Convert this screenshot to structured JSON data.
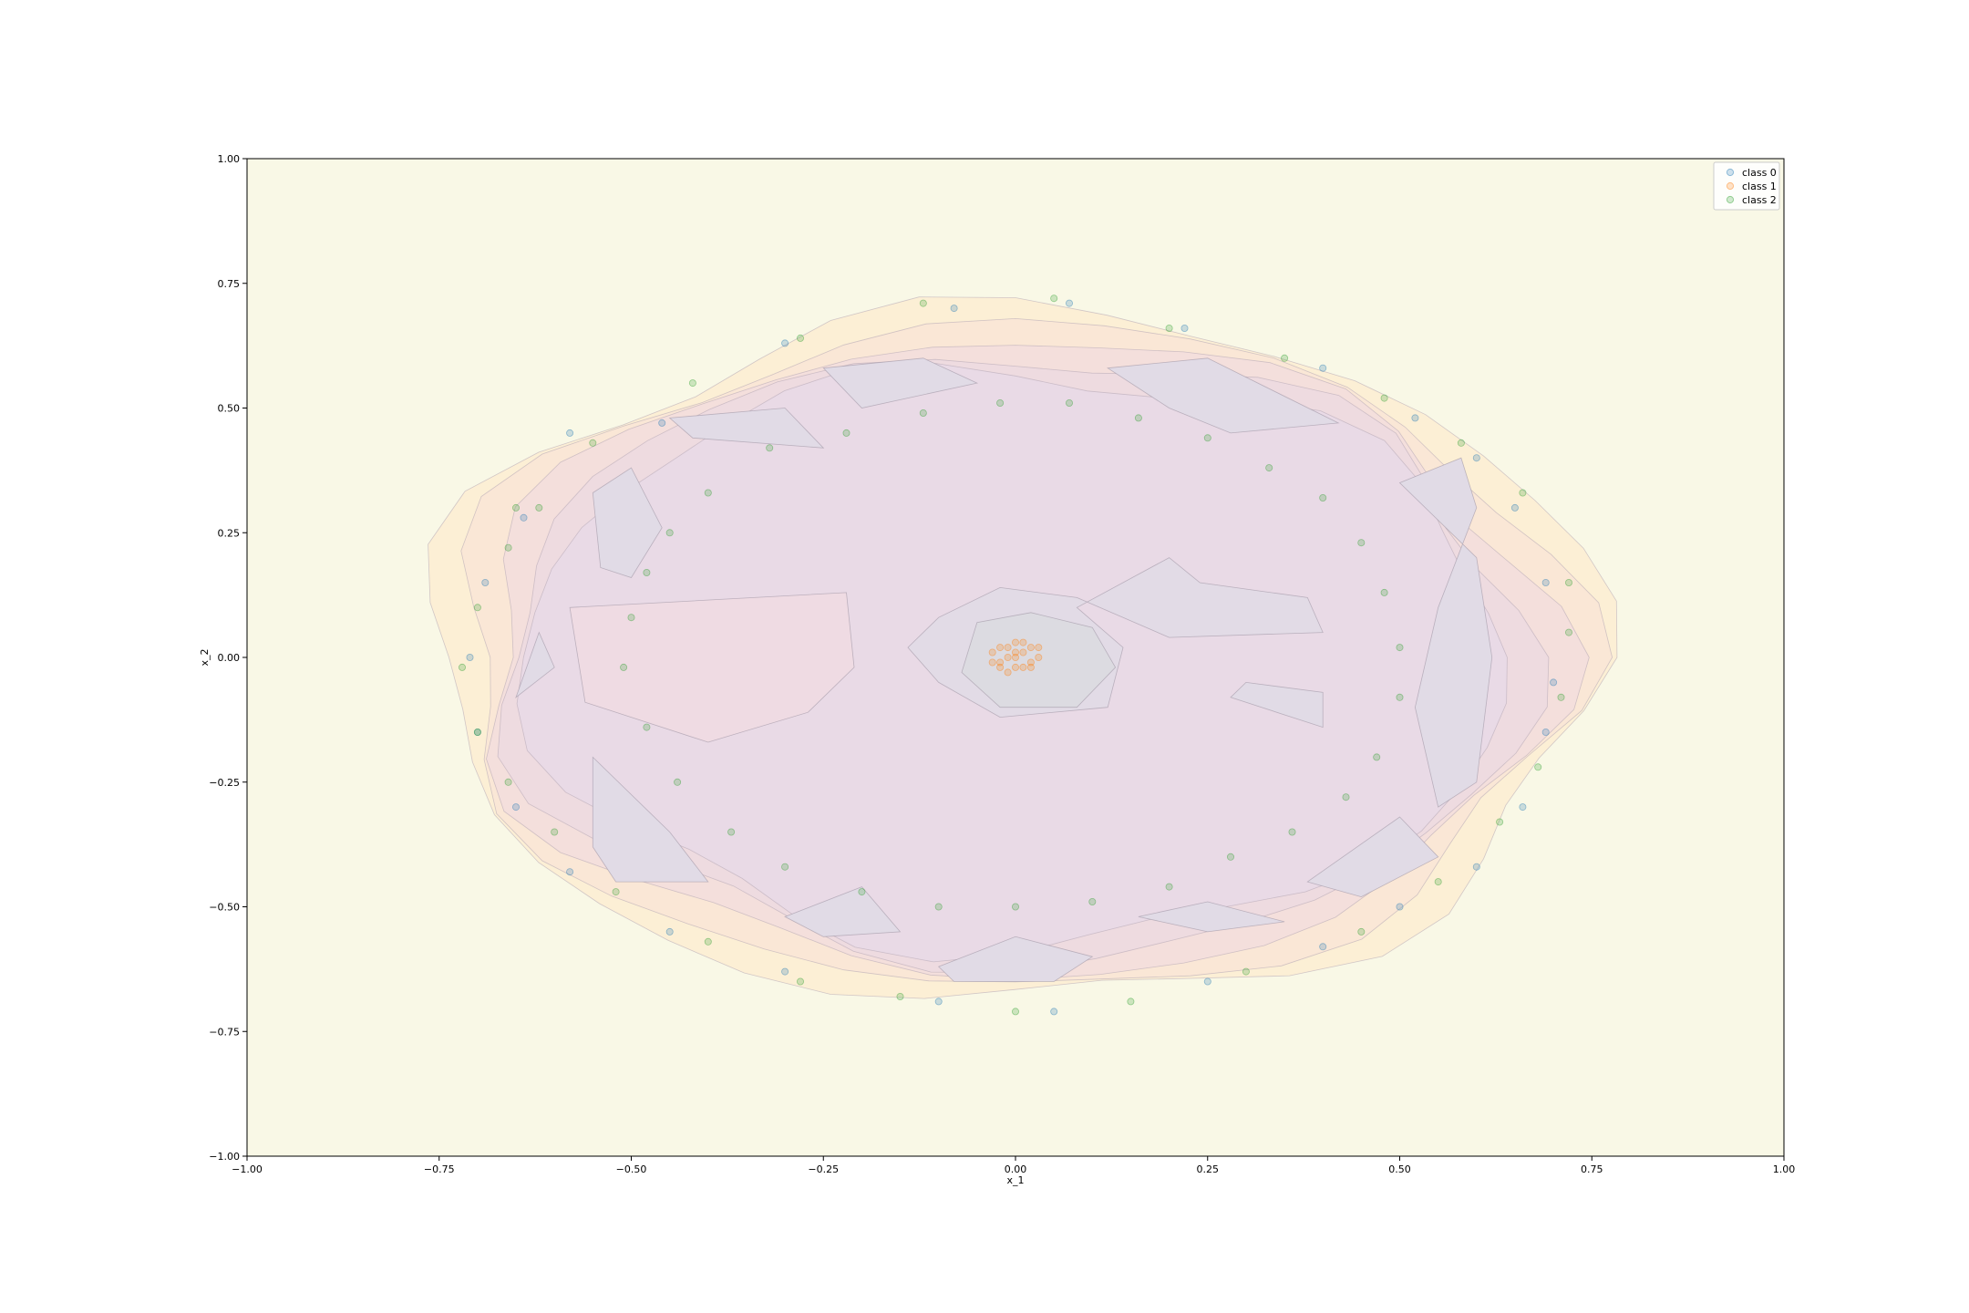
{
  "chart_data": {
    "type": "scatter",
    "title": "",
    "xlabel": "x_1",
    "ylabel": "x_2",
    "xlim": [
      -1.0,
      1.0
    ],
    "ylim": [
      -1.0,
      1.0
    ],
    "xticks": [
      "−1.00",
      "−0.75",
      "−0.50",
      "−0.25",
      "0.00",
      "0.25",
      "0.50",
      "0.75",
      "1.00"
    ],
    "yticks": [
      "−1.00",
      "−0.75",
      "−0.50",
      "−0.25",
      "0.00",
      "0.25",
      "0.50",
      "0.75",
      "1.00"
    ],
    "grid": false,
    "legend_position": "top-right",
    "background_contour": "filled decision-function contours (yellow outside → pink/purple inside) with darker regions near the center",
    "series": [
      {
        "name": "class 0",
        "color": "#1f77b4",
        "points": [
          [
            -0.58,
            0.45
          ],
          [
            -0.46,
            0.47
          ],
          [
            -0.3,
            0.63
          ],
          [
            -0.08,
            0.7
          ],
          [
            0.07,
            0.71
          ],
          [
            0.22,
            0.66
          ],
          [
            0.4,
            0.58
          ],
          [
            0.52,
            0.48
          ],
          [
            0.6,
            0.4
          ],
          [
            0.65,
            0.3
          ],
          [
            0.69,
            0.15
          ],
          [
            0.7,
            -0.05
          ],
          [
            0.69,
            -0.15
          ],
          [
            0.66,
            -0.3
          ],
          [
            0.6,
            -0.42
          ],
          [
            0.5,
            -0.5
          ],
          [
            0.4,
            -0.58
          ],
          [
            0.25,
            -0.65
          ],
          [
            0.05,
            -0.71
          ],
          [
            -0.1,
            -0.69
          ],
          [
            -0.3,
            -0.63
          ],
          [
            -0.45,
            -0.55
          ],
          [
            -0.58,
            -0.43
          ],
          [
            -0.65,
            -0.3
          ],
          [
            -0.7,
            -0.15
          ],
          [
            -0.71,
            0.0
          ],
          [
            -0.69,
            0.15
          ],
          [
            -0.64,
            0.28
          ]
        ]
      },
      {
        "name": "class 1",
        "color": "#ff7f0e",
        "points": [
          [
            0.0,
            0.0
          ],
          [
            0.01,
            0.01
          ],
          [
            -0.01,
            0.02
          ],
          [
            0.02,
            -0.01
          ],
          [
            -0.02,
            -0.01
          ],
          [
            0.0,
            -0.02
          ],
          [
            0.01,
            0.03
          ],
          [
            -0.01,
            -0.03
          ],
          [
            0.03,
            0.0
          ],
          [
            -0.03,
            0.01
          ],
          [
            0.02,
            0.02
          ],
          [
            -0.02,
            0.02
          ],
          [
            0.01,
            -0.02
          ],
          [
            -0.01,
            0.0
          ],
          [
            0.0,
            0.01
          ],
          [
            0.02,
            -0.02
          ],
          [
            -0.02,
            -0.02
          ],
          [
            0.03,
            0.02
          ],
          [
            -0.03,
            -0.01
          ],
          [
            0.0,
            0.03
          ]
        ]
      },
      {
        "name": "class 2",
        "color": "#2ca02c",
        "points": [
          [
            -0.4,
            0.33
          ],
          [
            -0.32,
            0.42
          ],
          [
            -0.22,
            0.45
          ],
          [
            -0.12,
            0.49
          ],
          [
            -0.02,
            0.51
          ],
          [
            0.07,
            0.51
          ],
          [
            0.16,
            0.48
          ],
          [
            0.25,
            0.44
          ],
          [
            0.33,
            0.38
          ],
          [
            0.4,
            0.32
          ],
          [
            0.45,
            0.23
          ],
          [
            0.48,
            0.13
          ],
          [
            0.5,
            0.02
          ],
          [
            0.5,
            -0.08
          ],
          [
            0.47,
            -0.2
          ],
          [
            0.43,
            -0.28
          ],
          [
            0.36,
            -0.35
          ],
          [
            0.28,
            -0.4
          ],
          [
            0.2,
            -0.46
          ],
          [
            0.1,
            -0.49
          ],
          [
            0.0,
            -0.5
          ],
          [
            -0.1,
            -0.5
          ],
          [
            -0.2,
            -0.47
          ],
          [
            -0.3,
            -0.42
          ],
          [
            -0.37,
            -0.35
          ],
          [
            -0.44,
            -0.25
          ],
          [
            -0.48,
            -0.14
          ],
          [
            -0.51,
            -0.02
          ],
          [
            -0.5,
            0.08
          ],
          [
            -0.48,
            0.17
          ],
          [
            -0.45,
            0.25
          ],
          [
            -0.62,
            0.3
          ],
          [
            -0.66,
            0.22
          ],
          [
            -0.7,
            0.1
          ],
          [
            -0.72,
            -0.02
          ],
          [
            -0.7,
            -0.15
          ],
          [
            -0.66,
            -0.25
          ],
          [
            -0.6,
            -0.35
          ],
          [
            -0.52,
            -0.47
          ],
          [
            -0.4,
            -0.57
          ],
          [
            -0.28,
            -0.65
          ],
          [
            -0.15,
            -0.68
          ],
          [
            0.0,
            -0.71
          ],
          [
            0.15,
            -0.69
          ],
          [
            0.3,
            -0.63
          ],
          [
            0.45,
            -0.55
          ],
          [
            0.55,
            -0.45
          ],
          [
            0.63,
            -0.33
          ],
          [
            0.68,
            -0.22
          ],
          [
            0.71,
            -0.08
          ],
          [
            0.72,
            0.05
          ],
          [
            0.72,
            0.15
          ],
          [
            0.66,
            0.33
          ],
          [
            0.58,
            0.43
          ],
          [
            0.48,
            0.52
          ],
          [
            0.35,
            0.6
          ],
          [
            0.2,
            0.66
          ],
          [
            0.05,
            0.72
          ],
          [
            -0.12,
            0.71
          ],
          [
            -0.28,
            0.64
          ],
          [
            -0.42,
            0.55
          ],
          [
            -0.55,
            0.43
          ],
          [
            -0.65,
            0.3
          ]
        ]
      }
    ]
  }
}
